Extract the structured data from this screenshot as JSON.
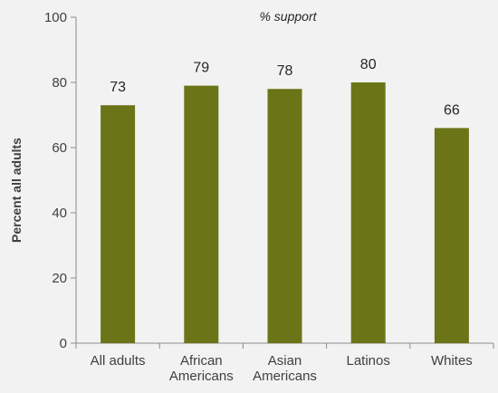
{
  "chart_data": {
    "type": "bar",
    "title": "",
    "subtitle": "% support",
    "xlabel": "",
    "ylabel": "Percent all adults",
    "categories": [
      [
        "All adults"
      ],
      [
        "African",
        "Americans"
      ],
      [
        "Asian",
        "Americans"
      ],
      [
        "Latinos"
      ],
      [
        "Whites"
      ]
    ],
    "values": [
      73,
      79,
      78,
      80,
      66
    ],
    "ylim": [
      0,
      100
    ],
    "yticks": [
      0,
      20,
      40,
      60,
      80,
      100
    ],
    "grid": false,
    "legend": "none",
    "colors": {
      "bar": "#6b7518",
      "axis": "#8c8c8c",
      "background": "#f2f2f2"
    }
  }
}
